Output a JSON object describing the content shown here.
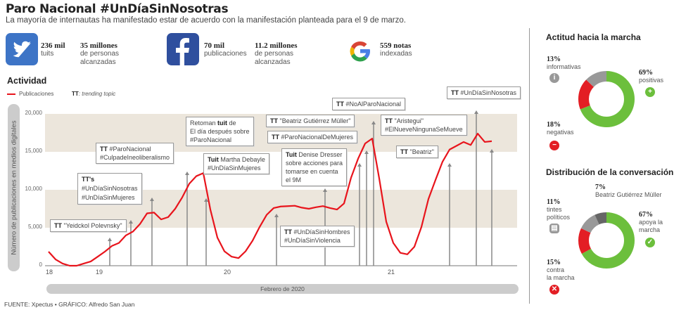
{
  "header": {
    "title": "Paro Nacional #UnDíaSinNosotras",
    "subtitle": "La mayoría de internautas ha manifestado estar de acuerdo con la manifestación planteada para el 9 de marzo."
  },
  "stats": {
    "twitter": {
      "icon": "twitter-bird-icon",
      "count": "236 mil",
      "count_label": "tuits",
      "reach": "35 millones",
      "reach_label": "de personas\nalcanzadas"
    },
    "facebook": {
      "icon": "facebook-f-icon",
      "count": "70 mil",
      "count_label": "publicaciones",
      "reach": "11.2 millones",
      "reach_label": "de personas\nalcanzadas"
    },
    "google": {
      "icon": "google-g-icon",
      "count": "559 notas",
      "count_label": "indexadas"
    }
  },
  "activity": {
    "title": "Actividad",
    "legend_series": "Publicaciones",
    "legend_tt_key": "TT",
    "legend_tt_desc": ": trending topic"
  },
  "chart_data": {
    "type": "line",
    "title": "Actividad",
    "ylabel": "Número de publicaciones en medios digitales",
    "xlabel": "Febrero de 2020",
    "ylim": [
      0,
      20000
    ],
    "yticks": [
      "0",
      "5,000",
      "10,000",
      "15,000",
      "20,000"
    ],
    "ytick_values": [
      0,
      5000,
      10000,
      15000,
      20000
    ],
    "xticks": [
      {
        "label": "18",
        "index": 0
      },
      {
        "label": "19",
        "index": 7.1
      },
      {
        "label": "20",
        "index": 25.3
      },
      {
        "label": "21",
        "index": 48.6
      }
    ],
    "bands": [
      [
        5000,
        10000
      ],
      [
        15000,
        20000
      ]
    ],
    "series": [
      {
        "name": "Publicaciones",
        "color": "#e8141c",
        "values": [
          1850,
          830,
          280,
          0,
          0,
          280,
          560,
          1200,
          1850,
          2600,
          3000,
          4000,
          4500,
          5500,
          6900,
          7000,
          6100,
          6400,
          7500,
          9000,
          10800,
          11800,
          12200,
          7400,
          3700,
          1900,
          1200,
          1000,
          1900,
          3300,
          5100,
          6700,
          7600,
          7800,
          7850,
          7900,
          7650,
          7500,
          7700,
          7850,
          7600,
          7400,
          8200,
          11600,
          14100,
          16100,
          16750,
          11500,
          5800,
          3000,
          1700,
          1500,
          2500,
          5100,
          8800,
          11300,
          13700,
          15300,
          15800,
          16300,
          15900,
          17400,
          16300,
          16400
        ]
      }
    ],
    "annotations": [
      {
        "tag": "TT",
        "text": " \"Yeidckol Polevnsky\"",
        "index": 8.7
      },
      {
        "tag": "TT's",
        "text": "\n#UnDíaSinNosotras\n#UnDíaSinMujeres",
        "index": 11.7
      },
      {
        "tag": "TT",
        "text": " #ParoNacional\n#CulpadeIneoliberalismo",
        "index": 14.7
      },
      {
        "tag": "Retoman ",
        "tag2": "tuit",
        "text": " de\nEl día después sobre\n#ParoNacional",
        "index": 19.7
      },
      {
        "tag": "Tuit",
        "text": " Martha Debayle\n#UnDíaSinMujeres",
        "index": 22.4
      },
      {
        "tag": "TT",
        "text": " #UnDíaSinHombres\n#UnDíaSinViolencia",
        "index": 32.4
      },
      {
        "tag": "Tuit",
        "text": " Denise Dresser\nsobre acciones para\ntomarse en cuenta\nel 9M",
        "index": 39.3
      },
      {
        "tag": "TT",
        "text": " #ParoNacionalDeMujeres",
        "index": 44.2
      },
      {
        "tag": "TT",
        "text": " \"Beatriz Gutiérrez Müller\"",
        "index": 45.2
      },
      {
        "tag": "TT",
        "text": " #NoAlParoNacional",
        "index": 46.2
      },
      {
        "tag": "TT",
        "text": " \"Beatriz\"",
        "index": 57
      },
      {
        "tag": "TT",
        "text": " \"Aristegui\"\n#ElNueveNingunaSeMueve",
        "index": 60.8
      },
      {
        "tag": "TT",
        "text": " #UnDíaSinNosotras",
        "index": 63
      }
    ]
  },
  "attitude": {
    "title": "Actitud hacia la marcha",
    "slices": [
      {
        "label": "positivas",
        "pct": 69,
        "pct_text": "69%",
        "color": "#6cbf3c",
        "icon": "plus-icon",
        "glyph": "+"
      },
      {
        "label": "negativas",
        "pct": 18,
        "pct_text": "18%",
        "color": "#e31e24",
        "icon": "minus-icon",
        "glyph": "−"
      },
      {
        "label": "informativas",
        "pct": 13,
        "pct_text": "13%",
        "color": "#999999",
        "icon": "info-icon",
        "glyph": "i"
      }
    ]
  },
  "distribution": {
    "title": "Distribución de la conversación",
    "slices": [
      {
        "label": "apoya la\nmarcha",
        "pct": 67,
        "pct_text": "67%",
        "color": "#6cbf3c",
        "icon": "check-icon",
        "glyph": "✓"
      },
      {
        "label": "contra\nla marcha",
        "pct": 15,
        "pct_text": "15%",
        "color": "#e31e24",
        "icon": "x-icon",
        "glyph": "✕"
      },
      {
        "label": "tintes\npolíticos",
        "pct": 11,
        "pct_text": "11%",
        "color": "#999999",
        "icon": "document-icon",
        "glyph": "▤"
      },
      {
        "label": "Beatriz Gutiérrez Müller",
        "pct": 7,
        "pct_text": "7%",
        "color": "#666666"
      }
    ]
  },
  "footer": "FUENTE: Xpectus  • GRÁFICO: Alfredo San Juan"
}
